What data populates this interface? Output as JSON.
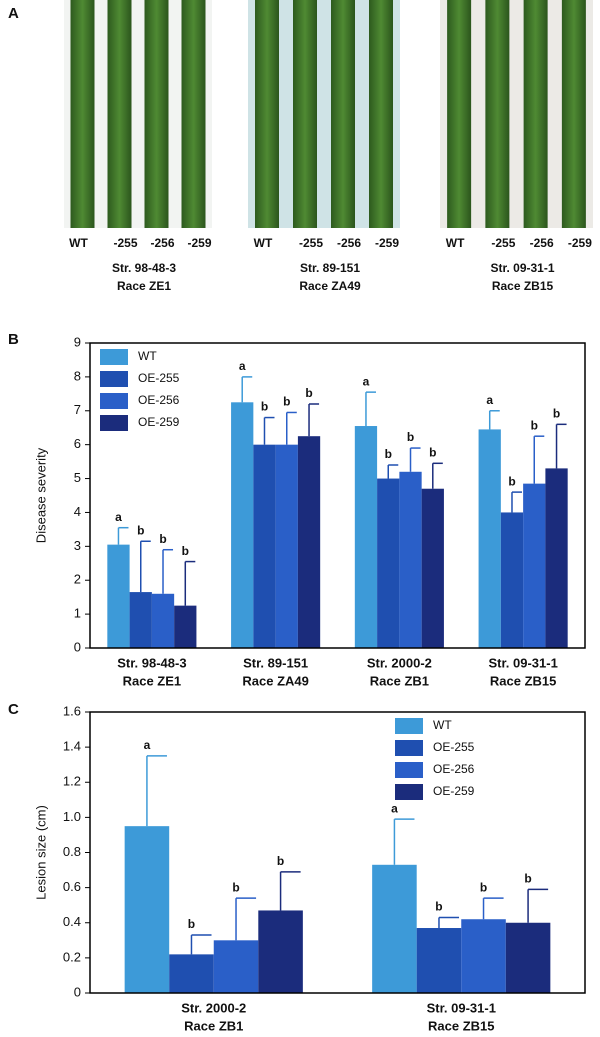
{
  "panel_a": {
    "label": "A",
    "groups": [
      {
        "leaves": [
          "WT",
          "-255",
          "-256",
          "-259"
        ],
        "strain": "Str. 98-48-3",
        "race": "Race ZE1"
      },
      {
        "leaves": [
          "WT",
          "-255",
          "-256",
          "-259"
        ],
        "strain": "Str. 89-151",
        "race": "Race ZA49"
      },
      {
        "leaves": [
          "WT",
          "-255",
          "-256",
          "-259"
        ],
        "strain": "Str. 09-31-1",
        "race": "Race ZB15"
      }
    ]
  },
  "chart_data": [
    {
      "type": "bar",
      "panel_label": "B",
      "y_label": "Disease severity",
      "categories": [
        "Str. 98-48-3",
        "Str. 89-151",
        "Str. 2000-2",
        "Str. 09-31-1"
      ],
      "category_races": [
        "Race ZE1",
        "Race ZA49",
        "Race ZB1",
        "Race ZB15"
      ],
      "ylim": [
        0,
        9
      ],
      "yticks": [
        0,
        1,
        2,
        3,
        4,
        5,
        6,
        7,
        8,
        9
      ],
      "legend": "top-left",
      "series": [
        {
          "name": "WT",
          "color": "#3d9ad8",
          "values": [
            3.05,
            7.25,
            6.55,
            6.45
          ],
          "errors": [
            0.5,
            0.75,
            1.0,
            0.55
          ],
          "letters": [
            "a",
            "a",
            "a",
            "a"
          ]
        },
        {
          "name": "OE-255",
          "color": "#1f4fb0",
          "values": [
            1.65,
            6.0,
            5.0,
            4.0
          ],
          "errors": [
            1.5,
            0.8,
            0.4,
            0.6
          ],
          "letters": [
            "b",
            "b",
            "b",
            "b"
          ]
        },
        {
          "name": "OE-256",
          "color": "#2a5fc8",
          "values": [
            1.6,
            6.0,
            5.2,
            4.85
          ],
          "errors": [
            1.3,
            0.95,
            0.7,
            1.4
          ],
          "letters": [
            "b",
            "b",
            "b",
            "b"
          ]
        },
        {
          "name": "OE-259",
          "color": "#1b2c7c",
          "values": [
            1.25,
            6.25,
            4.7,
            5.3
          ],
          "errors": [
            1.3,
            0.95,
            0.75,
            1.3
          ],
          "letters": [
            "b",
            "b",
            "b",
            "b"
          ]
        }
      ]
    },
    {
      "type": "bar",
      "panel_label": "C",
      "y_label": "Lesion size (cm)",
      "categories": [
        "Str. 2000-2",
        "Str. 09-31-1"
      ],
      "category_races": [
        "Race ZB1",
        "Race ZB15"
      ],
      "ylim": [
        0,
        1.6
      ],
      "yticks": [
        0,
        0.2,
        0.4,
        0.6,
        0.8,
        {
          "value": 1,
          "label": "1.0"
        },
        1.2,
        1.4,
        1.6
      ],
      "legend": "top-right",
      "series": [
        {
          "name": "WT",
          "color": "#3d9ad8",
          "values": [
            0.95,
            0.73
          ],
          "errors": [
            0.4,
            0.26
          ],
          "letters": [
            "a",
            "a"
          ]
        },
        {
          "name": "OE-255",
          "color": "#1f4fb0",
          "values": [
            0.22,
            0.37
          ],
          "errors": [
            0.11,
            0.06
          ],
          "letters": [
            "b",
            "b"
          ]
        },
        {
          "name": "OE-256",
          "color": "#2a5fc8",
          "values": [
            0.3,
            0.42
          ],
          "errors": [
            0.24,
            0.12
          ],
          "letters": [
            "b",
            "b"
          ]
        },
        {
          "name": "OE-259",
          "color": "#1b2c7c",
          "values": [
            0.47,
            0.4
          ],
          "errors": [
            0.22,
            0.19
          ],
          "letters": [
            "b",
            "b"
          ]
        }
      ]
    }
  ]
}
